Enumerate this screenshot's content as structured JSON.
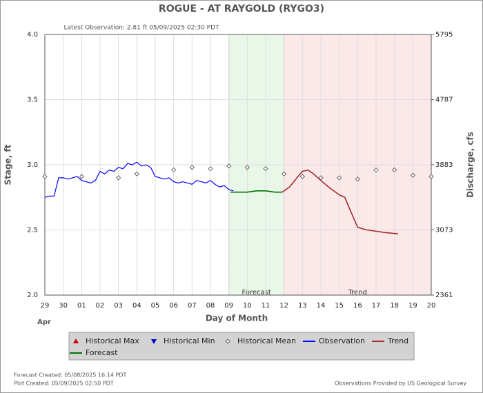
{
  "chart_data": {
    "type": "line",
    "title": "ROGUE - AT RAYGOLD  (RYGO3)",
    "subtitle": "Latest Observation: 2.81 ft 05/09/2025 02:30 PDT",
    "y_label": "Stage, ft",
    "y2_label": "Discharge, cfs",
    "x_label": "Day of Month",
    "x_sublabel": "Apr",
    "xlim": [
      0,
      21
    ],
    "xticks": [
      {
        "value": 0,
        "label": "29"
      },
      {
        "value": 1,
        "label": "30"
      },
      {
        "value": 2,
        "label": "01"
      },
      {
        "value": 3,
        "label": "02"
      },
      {
        "value": 4,
        "label": "03"
      },
      {
        "value": 5,
        "label": "04"
      },
      {
        "value": 6,
        "label": "05"
      },
      {
        "value": 7,
        "label": "06"
      },
      {
        "value": 8,
        "label": "07"
      },
      {
        "value": 9,
        "label": "08"
      },
      {
        "value": 10,
        "label": "09"
      },
      {
        "value": 11,
        "label": "10"
      },
      {
        "value": 12,
        "label": "11"
      },
      {
        "value": 13,
        "label": "12"
      },
      {
        "value": 14,
        "label": "13"
      },
      {
        "value": 15,
        "label": "14"
      },
      {
        "value": 16,
        "label": "15"
      },
      {
        "value": 17,
        "label": "16"
      },
      {
        "value": 18,
        "label": "17"
      },
      {
        "value": 19,
        "label": "18"
      },
      {
        "value": 20,
        "label": "19"
      },
      {
        "value": 21,
        "label": "20"
      }
    ],
    "ylim": [
      2.0,
      4.0
    ],
    "yticks": [
      {
        "value": 2.0,
        "label": "2.0"
      },
      {
        "value": 2.5,
        "label": "2.5"
      },
      {
        "value": 3.0,
        "label": "3.0"
      },
      {
        "value": 3.5,
        "label": "3.5"
      },
      {
        "value": 4.0,
        "label": "4.0"
      }
    ],
    "y2ticks": [
      2361,
      3073,
      3883,
      4787,
      5795
    ],
    "regions": [
      {
        "name": "Forecast",
        "color": "#e9f7e9",
        "xlim": [
          10,
          13
        ]
      },
      {
        "name": "Trend",
        "color": "#fbe9e9",
        "xlim": [
          13,
          21
        ]
      }
    ],
    "series": [
      {
        "name": "Historical Max",
        "color": "#cc0000",
        "marker": "triangle-up",
        "x": [],
        "values": []
      },
      {
        "name": "Historical Min",
        "color": "#0000cc",
        "marker": "triangle-down",
        "x": [],
        "values": []
      },
      {
        "name": "Historical Mean",
        "color": "#666666",
        "marker": "diamond",
        "x": [
          0,
          2,
          4,
          5,
          7,
          8,
          9,
          10,
          11,
          12,
          13,
          14,
          15,
          16,
          17,
          18,
          19,
          20,
          21
        ],
        "values": [
          2.91,
          2.91,
          2.9,
          2.93,
          2.96,
          2.98,
          2.97,
          2.99,
          2.98,
          2.97,
          2.93,
          2.91,
          2.9,
          2.9,
          2.89,
          2.96,
          2.96,
          2.92,
          2.91
        ]
      },
      {
        "name": "Observation",
        "color": "#0000ff",
        "marker": "line",
        "x": [
          0,
          0.25,
          0.5,
          0.75,
          1,
          1.25,
          1.5,
          1.75,
          2,
          2.25,
          2.5,
          2.75,
          3,
          3.25,
          3.5,
          3.75,
          4,
          4.25,
          4.5,
          4.75,
          5,
          5.25,
          5.5,
          5.75,
          6,
          6.25,
          6.5,
          6.75,
          7,
          7.25,
          7.5,
          7.75,
          8,
          8.25,
          8.5,
          8.75,
          9,
          9.25,
          9.5,
          9.75,
          10,
          10.25
        ],
        "values": [
          2.75,
          2.76,
          2.76,
          2.9,
          2.9,
          2.89,
          2.9,
          2.91,
          2.88,
          2.87,
          2.86,
          2.88,
          2.95,
          2.93,
          2.96,
          2.95,
          2.98,
          2.97,
          3.01,
          3.0,
          3.02,
          2.99,
          3.0,
          2.98,
          2.91,
          2.9,
          2.89,
          2.9,
          2.87,
          2.86,
          2.87,
          2.86,
          2.85,
          2.88,
          2.87,
          2.86,
          2.88,
          2.85,
          2.83,
          2.84,
          2.81,
          2.8
        ]
      },
      {
        "name": "Trend",
        "color": "#a52a2a",
        "marker": "line",
        "x": [
          12.9,
          13.3,
          13.7,
          14,
          14.3,
          14.6,
          15,
          15.5,
          16,
          16.3,
          16.6,
          17,
          17.5,
          18,
          18.5,
          19.2
        ],
        "values": [
          2.79,
          2.83,
          2.9,
          2.95,
          2.96,
          2.93,
          2.88,
          2.82,
          2.77,
          2.75,
          2.65,
          2.52,
          2.5,
          2.49,
          2.48,
          2.47
        ]
      },
      {
        "name": "Forecast",
        "color": "#007000",
        "marker": "line",
        "x": [
          10.1,
          10.5,
          11,
          11.5,
          12,
          12.5,
          12.9
        ],
        "values": [
          2.79,
          2.79,
          2.79,
          2.8,
          2.8,
          2.79,
          2.79
        ]
      }
    ],
    "footer_left": [
      "Forecast Created: 05/08/2025 16:14 PDT",
      "Plot Created: 05/09/2025 02:50 PDT"
    ],
    "footer_right": "Observations Provided by US Geological Survey"
  }
}
